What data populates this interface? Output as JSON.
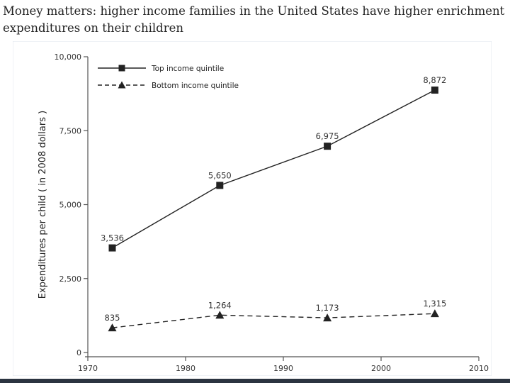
{
  "caption": "Money matters: higher income families in the United States have higher enrichment expenditures on their children",
  "chart_data": {
    "type": "line",
    "title": "",
    "xlabel": "",
    "ylabel": "Expenditures per child ( in 2008 dollars )",
    "xlim": [
      1970,
      2010
    ],
    "ylim": [
      0,
      10000
    ],
    "x_ticks": [
      1970,
      1980,
      1990,
      2000,
      2010
    ],
    "y_ticks": [
      0,
      2500,
      5000,
      7500,
      10000
    ],
    "y_tick_labels": [
      "0",
      "2,500",
      "5,000",
      "7,500",
      "10,000"
    ],
    "grid": false,
    "legend_position": "top-left",
    "x": [
      1972.5,
      1983.5,
      1994.5,
      2005.5
    ],
    "series": [
      {
        "name": "Top income quintile",
        "values": [
          3536,
          5650,
          6975,
          8872
        ],
        "labels": [
          "3,536",
          "5,650",
          "6,975",
          "8,872"
        ],
        "line_style": "solid",
        "marker": "square",
        "color": "#222222"
      },
      {
        "name": "Bottom income quintile",
        "values": [
          835,
          1264,
          1173,
          1315
        ],
        "labels": [
          "835",
          "1,264",
          "1,173",
          "1,315"
        ],
        "line_style": "dashed",
        "marker": "triangle",
        "color": "#222222"
      }
    ]
  }
}
